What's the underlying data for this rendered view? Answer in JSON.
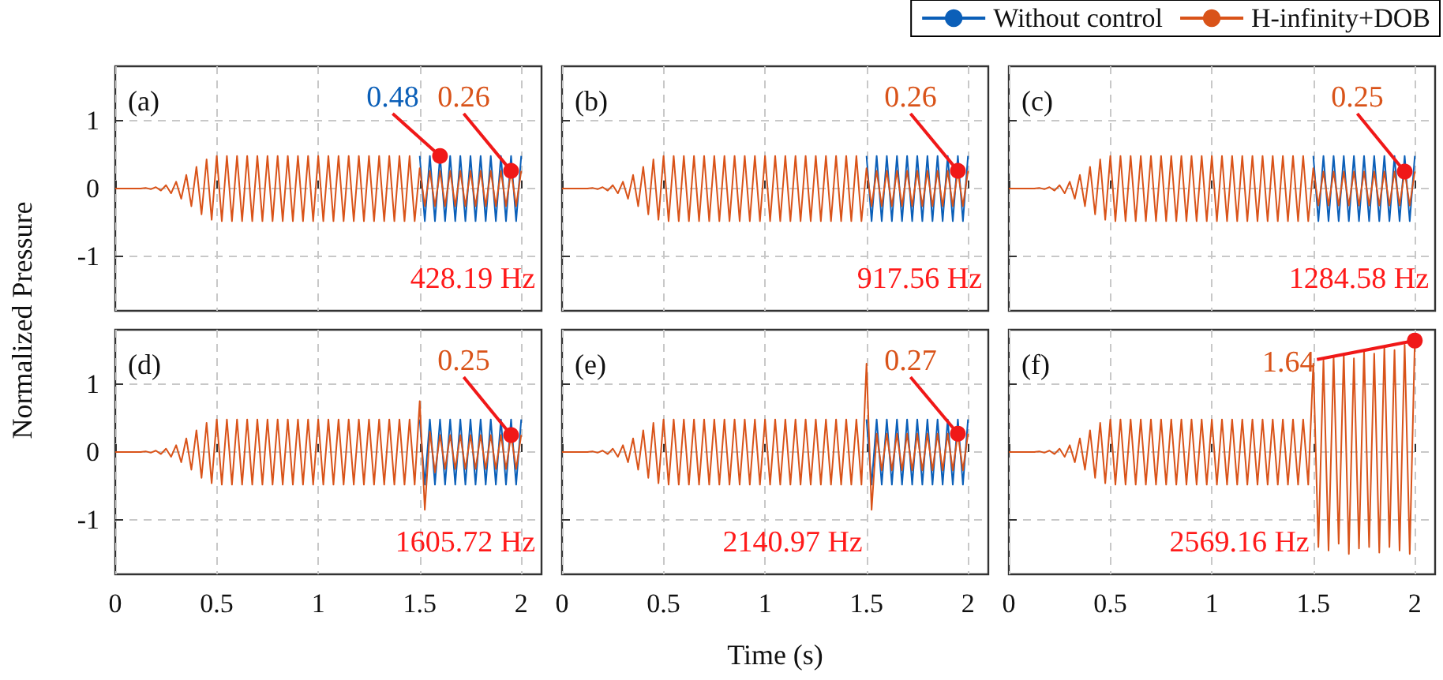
{
  "chart_data": [
    {
      "type": "line",
      "legend": "top right",
      "ylabel": "Normalized Pressure",
      "grid": true,
      "tick_labels": "y",
      "xlim": [
        0,
        2.1
      ],
      "xticks": [
        0,
        0.5,
        1,
        1.5,
        2
      ],
      "ylim": [
        -1.8,
        1.8
      ],
      "yticks": [
        -1,
        0,
        1
      ],
      "annotations": [
        "(a)",
        "428.19 Hz",
        {
          "text": "0.48",
          "x": 1.6,
          "y": 0.48
        },
        {
          "text": "0.26",
          "x": 1.95,
          "y": 0.26
        }
      ],
      "x": [
        0,
        0.025,
        0.05,
        0.075,
        0.1,
        0.125,
        0.15,
        0.175,
        0.2,
        0.225,
        0.25,
        0.275,
        0.3,
        0.325,
        0.35,
        0.375,
        0.4,
        0.425,
        0.45,
        0.475,
        0.5,
        0.525,
        0.55,
        0.575,
        0.6,
        0.625,
        0.65,
        0.675,
        0.7,
        0.725,
        0.75,
        0.775,
        0.8,
        0.825,
        0.85,
        0.875,
        0.9,
        0.925,
        0.95,
        0.975,
        1,
        1.025,
        1.05,
        1.075,
        1.1,
        1.125,
        1.15,
        1.175,
        1.2,
        1.225,
        1.25,
        1.275,
        1.3,
        1.325,
        1.35,
        1.375,
        1.4,
        1.425,
        1.45,
        1.475,
        1.5,
        1.525,
        1.55,
        1.575,
        1.6,
        1.625,
        1.65,
        1.675,
        1.7,
        1.725,
        1.75,
        1.775,
        1.8,
        1.825,
        1.85,
        1.875,
        1.9,
        1.925,
        1.95,
        1.975,
        2
      ],
      "series": [
        {
          "name": "Without control",
          "color": "#0b5fb8",
          "x": [
            1.5,
            1.525,
            1.55,
            1.575,
            1.6,
            1.625,
            1.65,
            1.675,
            1.7,
            1.725,
            1.75,
            1.775,
            1.8,
            1.825,
            1.85,
            1.875,
            1.9,
            1.925,
            1.95,
            1.975,
            2
          ],
          "values": [
            0.48,
            -0.48,
            0.48,
            -0.48,
            0.48,
            -0.48,
            0.48,
            -0.48,
            0.48,
            -0.48,
            0.48,
            -0.48,
            0.48,
            -0.48,
            0.48,
            -0.48,
            0.48,
            -0.48,
            0.48,
            -0.48,
            0.48
          ]
        },
        {
          "name": "H-infinity+DOB",
          "color": "#d95319",
          "values": [
            0,
            0,
            0,
            0,
            0,
            0,
            0.01,
            -0.01,
            0.02,
            -0.03,
            0.05,
            -0.07,
            0.1,
            -0.15,
            0.2,
            -0.26,
            0.32,
            -0.38,
            0.43,
            -0.46,
            0.48,
            -0.48,
            0.48,
            -0.48,
            0.48,
            -0.48,
            0.48,
            -0.48,
            0.48,
            -0.48,
            0.48,
            -0.48,
            0.48,
            -0.48,
            0.48,
            -0.48,
            0.48,
            -0.48,
            0.48,
            -0.48,
            0.48,
            -0.48,
            0.48,
            -0.48,
            0.48,
            -0.48,
            0.48,
            -0.48,
            0.48,
            -0.48,
            0.48,
            -0.48,
            0.48,
            -0.48,
            0.48,
            -0.48,
            0.48,
            -0.48,
            0.48,
            -0.48,
            0.3,
            -0.26,
            0.26,
            -0.26,
            0.26,
            -0.26,
            0.26,
            -0.26,
            0.26,
            -0.26,
            0.26,
            -0.26,
            0.26,
            -0.26,
            0.26,
            -0.26,
            0.26,
            -0.26,
            0.26,
            -0.26,
            0.26
          ]
        }
      ]
    },
    {
      "type": "line",
      "grid": true,
      "tick_labels": false,
      "xlim": [
        0,
        2.1
      ],
      "xticks": [
        0,
        0.5,
        1,
        1.5,
        2
      ],
      "ylim": [
        -1.8,
        1.8
      ],
      "yticks": [
        -1,
        0,
        1
      ],
      "annotations": [
        "(b)",
        "917.56 Hz",
        {
          "text": "0.26",
          "x": 1.95,
          "y": 0.26
        }
      ],
      "x": [
        0,
        0.025,
        0.05,
        0.075,
        0.1,
        0.125,
        0.15,
        0.175,
        0.2,
        0.225,
        0.25,
        0.275,
        0.3,
        0.325,
        0.35,
        0.375,
        0.4,
        0.425,
        0.45,
        0.475,
        0.5,
        0.525,
        0.55,
        0.575,
        0.6,
        0.625,
        0.65,
        0.675,
        0.7,
        0.725,
        0.75,
        0.775,
        0.8,
        0.825,
        0.85,
        0.875,
        0.9,
        0.925,
        0.95,
        0.975,
        1,
        1.025,
        1.05,
        1.075,
        1.1,
        1.125,
        1.15,
        1.175,
        1.2,
        1.225,
        1.25,
        1.275,
        1.3,
        1.325,
        1.35,
        1.375,
        1.4,
        1.425,
        1.45,
        1.475,
        1.5,
        1.525,
        1.55,
        1.575,
        1.6,
        1.625,
        1.65,
        1.675,
        1.7,
        1.725,
        1.75,
        1.775,
        1.8,
        1.825,
        1.85,
        1.875,
        1.9,
        1.925,
        1.95,
        1.975,
        2
      ],
      "series": [
        {
          "name": "Without control",
          "color": "#0b5fb8",
          "x": [
            1.5,
            1.525,
            1.55,
            1.575,
            1.6,
            1.625,
            1.65,
            1.675,
            1.7,
            1.725,
            1.75,
            1.775,
            1.8,
            1.825,
            1.85,
            1.875,
            1.9,
            1.925,
            1.95,
            1.975,
            2
          ],
          "values": [
            0.48,
            -0.48,
            0.48,
            -0.48,
            0.48,
            -0.48,
            0.48,
            -0.48,
            0.48,
            -0.48,
            0.48,
            -0.48,
            0.48,
            -0.48,
            0.48,
            -0.48,
            0.48,
            -0.48,
            0.48,
            -0.48,
            0.48
          ]
        },
        {
          "name": "H-infinity+DOB",
          "color": "#d95319",
          "values": [
            0,
            0,
            0,
            0,
            0,
            0,
            0.01,
            -0.01,
            0.02,
            -0.03,
            0.05,
            -0.07,
            0.1,
            -0.15,
            0.2,
            -0.26,
            0.32,
            -0.38,
            0.43,
            -0.46,
            0.48,
            -0.48,
            0.48,
            -0.48,
            0.48,
            -0.48,
            0.48,
            -0.48,
            0.48,
            -0.48,
            0.48,
            -0.48,
            0.48,
            -0.48,
            0.48,
            -0.48,
            0.48,
            -0.48,
            0.48,
            -0.48,
            0.48,
            -0.48,
            0.48,
            -0.48,
            0.48,
            -0.48,
            0.48,
            -0.48,
            0.48,
            -0.48,
            0.48,
            -0.48,
            0.48,
            -0.48,
            0.48,
            -0.48,
            0.48,
            -0.48,
            0.48,
            -0.48,
            0.3,
            -0.26,
            0.26,
            -0.26,
            0.26,
            -0.26,
            0.26,
            -0.26,
            0.26,
            -0.26,
            0.26,
            -0.26,
            0.26,
            -0.26,
            0.26,
            -0.26,
            0.26,
            -0.26,
            0.26,
            -0.26,
            0.26
          ]
        }
      ]
    },
    {
      "type": "line",
      "grid": true,
      "tick_labels": false,
      "xlim": [
        0,
        2.1
      ],
      "xticks": [
        0,
        0.5,
        1,
        1.5,
        2
      ],
      "ylim": [
        -1.8,
        1.8
      ],
      "yticks": [
        -1,
        0,
        1
      ],
      "annotations": [
        "(c)",
        "1284.58 Hz",
        {
          "text": "0.25",
          "x": 1.95,
          "y": 0.25
        }
      ],
      "x": [
        0,
        0.025,
        0.05,
        0.075,
        0.1,
        0.125,
        0.15,
        0.175,
        0.2,
        0.225,
        0.25,
        0.275,
        0.3,
        0.325,
        0.35,
        0.375,
        0.4,
        0.425,
        0.45,
        0.475,
        0.5,
        0.525,
        0.55,
        0.575,
        0.6,
        0.625,
        0.65,
        0.675,
        0.7,
        0.725,
        0.75,
        0.775,
        0.8,
        0.825,
        0.85,
        0.875,
        0.9,
        0.925,
        0.95,
        0.975,
        1,
        1.025,
        1.05,
        1.075,
        1.1,
        1.125,
        1.15,
        1.175,
        1.2,
        1.225,
        1.25,
        1.275,
        1.3,
        1.325,
        1.35,
        1.375,
        1.4,
        1.425,
        1.45,
        1.475,
        1.5,
        1.525,
        1.55,
        1.575,
        1.6,
        1.625,
        1.65,
        1.675,
        1.7,
        1.725,
        1.75,
        1.775,
        1.8,
        1.825,
        1.85,
        1.875,
        1.9,
        1.925,
        1.95,
        1.975,
        2
      ],
      "series": [
        {
          "name": "Without control",
          "color": "#0b5fb8",
          "x": [
            1.5,
            1.525,
            1.55,
            1.575,
            1.6,
            1.625,
            1.65,
            1.675,
            1.7,
            1.725,
            1.75,
            1.775,
            1.8,
            1.825,
            1.85,
            1.875,
            1.9,
            1.925,
            1.95,
            1.975,
            2
          ],
          "values": [
            0.48,
            -0.48,
            0.48,
            -0.48,
            0.48,
            -0.48,
            0.48,
            -0.48,
            0.48,
            -0.48,
            0.48,
            -0.48,
            0.48,
            -0.48,
            0.48,
            -0.48,
            0.48,
            -0.48,
            0.48,
            -0.48,
            0.48
          ]
        },
        {
          "name": "H-infinity+DOB",
          "color": "#d95319",
          "values": [
            0,
            0,
            0,
            0,
            0,
            0,
            0.01,
            -0.01,
            0.02,
            -0.03,
            0.05,
            -0.07,
            0.1,
            -0.15,
            0.2,
            -0.26,
            0.32,
            -0.38,
            0.43,
            -0.46,
            0.48,
            -0.48,
            0.48,
            -0.48,
            0.48,
            -0.48,
            0.48,
            -0.48,
            0.48,
            -0.48,
            0.48,
            -0.48,
            0.48,
            -0.48,
            0.48,
            -0.48,
            0.48,
            -0.48,
            0.48,
            -0.48,
            0.48,
            -0.48,
            0.48,
            -0.48,
            0.48,
            -0.48,
            0.48,
            -0.48,
            0.48,
            -0.48,
            0.48,
            -0.48,
            0.48,
            -0.48,
            0.48,
            -0.48,
            0.48,
            -0.48,
            0.48,
            -0.48,
            0.3,
            -0.25,
            0.25,
            -0.25,
            0.25,
            -0.25,
            0.25,
            -0.25,
            0.25,
            -0.25,
            0.25,
            -0.25,
            0.25,
            -0.25,
            0.25,
            -0.25,
            0.25,
            -0.25,
            0.25,
            -0.25,
            0.25
          ]
        }
      ]
    },
    {
      "type": "line",
      "grid": true,
      "xlim": [
        0,
        2.1
      ],
      "xticks": [
        0,
        0.5,
        1,
        1.5,
        2
      ],
      "ylim": [
        -1.8,
        1.8
      ],
      "yticks": [
        -1,
        0,
        1
      ],
      "annotations": [
        "(d)",
        "1605.72 Hz",
        {
          "text": "0.25",
          "x": 1.95,
          "y": 0.25
        }
      ],
      "x": [
        0,
        0.025,
        0.05,
        0.075,
        0.1,
        0.125,
        0.15,
        0.175,
        0.2,
        0.225,
        0.25,
        0.275,
        0.3,
        0.325,
        0.35,
        0.375,
        0.4,
        0.425,
        0.45,
        0.475,
        0.5,
        0.525,
        0.55,
        0.575,
        0.6,
        0.625,
        0.65,
        0.675,
        0.7,
        0.725,
        0.75,
        0.775,
        0.8,
        0.825,
        0.85,
        0.875,
        0.9,
        0.925,
        0.95,
        0.975,
        1,
        1.025,
        1.05,
        1.075,
        1.1,
        1.125,
        1.15,
        1.175,
        1.2,
        1.225,
        1.25,
        1.275,
        1.3,
        1.325,
        1.35,
        1.375,
        1.4,
        1.425,
        1.45,
        1.475,
        1.5,
        1.525,
        1.55,
        1.575,
        1.6,
        1.625,
        1.65,
        1.675,
        1.7,
        1.725,
        1.75,
        1.775,
        1.8,
        1.825,
        1.85,
        1.875,
        1.9,
        1.925,
        1.95,
        1.975,
        2
      ],
      "series": [
        {
          "name": "Without control",
          "color": "#0b5fb8",
          "x": [
            1.5,
            1.525,
            1.55,
            1.575,
            1.6,
            1.625,
            1.65,
            1.675,
            1.7,
            1.725,
            1.75,
            1.775,
            1.8,
            1.825,
            1.85,
            1.875,
            1.9,
            1.925,
            1.95,
            1.975,
            2
          ],
          "values": [
            0.48,
            -0.48,
            0.48,
            -0.48,
            0.48,
            -0.48,
            0.48,
            -0.48,
            0.48,
            -0.48,
            0.48,
            -0.48,
            0.48,
            -0.48,
            0.48,
            -0.48,
            0.48,
            -0.48,
            0.48,
            -0.48,
            0.48
          ]
        },
        {
          "name": "H-infinity+DOB",
          "color": "#d95319",
          "values": [
            0,
            0,
            0,
            0,
            0,
            0,
            0.01,
            -0.01,
            0.02,
            -0.03,
            0.05,
            -0.07,
            0.1,
            -0.15,
            0.2,
            -0.26,
            0.32,
            -0.38,
            0.43,
            -0.46,
            0.48,
            -0.48,
            0.48,
            -0.48,
            0.48,
            -0.48,
            0.48,
            -0.48,
            0.48,
            -0.48,
            0.48,
            -0.48,
            0.48,
            -0.48,
            0.48,
            -0.48,
            0.48,
            -0.48,
            0.48,
            -0.48,
            0.48,
            -0.48,
            0.48,
            -0.48,
            0.48,
            -0.48,
            0.48,
            -0.48,
            0.48,
            -0.48,
            0.48,
            -0.48,
            0.48,
            -0.48,
            0.48,
            -0.48,
            0.48,
            -0.48,
            0.48,
            -0.48,
            0.75,
            -0.85,
            0.3,
            -0.3,
            0.25,
            -0.25,
            0.25,
            -0.25,
            0.25,
            -0.25,
            0.25,
            -0.25,
            0.25,
            -0.25,
            0.25,
            -0.25,
            0.25,
            -0.25,
            0.25,
            -0.25,
            0.25
          ]
        }
      ]
    },
    {
      "type": "line",
      "xlabel": "Time (s)",
      "grid": true,
      "tick_labels": "x",
      "xlim": [
        0,
        2.1
      ],
      "xticks": [
        0,
        0.5,
        1,
        1.5,
        2
      ],
      "ylim": [
        -1.8,
        1.8
      ],
      "yticks": [
        -1,
        0,
        1
      ],
      "annotations": [
        "(e)",
        "2140.97 Hz",
        {
          "text": "0.27",
          "x": 1.95,
          "y": 0.27
        }
      ],
      "x": [
        0,
        0.025,
        0.05,
        0.075,
        0.1,
        0.125,
        0.15,
        0.175,
        0.2,
        0.225,
        0.25,
        0.275,
        0.3,
        0.325,
        0.35,
        0.375,
        0.4,
        0.425,
        0.45,
        0.475,
        0.5,
        0.525,
        0.55,
        0.575,
        0.6,
        0.625,
        0.65,
        0.675,
        0.7,
        0.725,
        0.75,
        0.775,
        0.8,
        0.825,
        0.85,
        0.875,
        0.9,
        0.925,
        0.95,
        0.975,
        1,
        1.025,
        1.05,
        1.075,
        1.1,
        1.125,
        1.15,
        1.175,
        1.2,
        1.225,
        1.25,
        1.275,
        1.3,
        1.325,
        1.35,
        1.375,
        1.4,
        1.425,
        1.45,
        1.475,
        1.5,
        1.525,
        1.55,
        1.575,
        1.6,
        1.625,
        1.65,
        1.675,
        1.7,
        1.725,
        1.75,
        1.775,
        1.8,
        1.825,
        1.85,
        1.875,
        1.9,
        1.925,
        1.95,
        1.975,
        2
      ],
      "series": [
        {
          "name": "Without control",
          "color": "#0b5fb8",
          "x": [
            1.5,
            1.525,
            1.55,
            1.575,
            1.6,
            1.625,
            1.65,
            1.675,
            1.7,
            1.725,
            1.75,
            1.775,
            1.8,
            1.825,
            1.85,
            1.875,
            1.9,
            1.925,
            1.95,
            1.975,
            2
          ],
          "values": [
            0.48,
            -0.48,
            0.48,
            -0.48,
            0.48,
            -0.48,
            0.48,
            -0.48,
            0.48,
            -0.48,
            0.48,
            -0.48,
            0.48,
            -0.48,
            0.48,
            -0.48,
            0.48,
            -0.48,
            0.48,
            -0.48,
            0.48
          ]
        },
        {
          "name": "H-infinity+DOB",
          "color": "#d95319",
          "values": [
            0,
            0,
            0,
            0,
            0,
            0,
            0.01,
            -0.01,
            0.02,
            -0.03,
            0.05,
            -0.07,
            0.1,
            -0.15,
            0.2,
            -0.26,
            0.32,
            -0.38,
            0.43,
            -0.46,
            0.48,
            -0.48,
            0.48,
            -0.48,
            0.48,
            -0.48,
            0.48,
            -0.48,
            0.48,
            -0.48,
            0.48,
            -0.48,
            0.48,
            -0.48,
            0.48,
            -0.48,
            0.48,
            -0.48,
            0.48,
            -0.48,
            0.48,
            -0.48,
            0.48,
            -0.48,
            0.48,
            -0.48,
            0.48,
            -0.48,
            0.48,
            -0.48,
            0.48,
            -0.48,
            0.48,
            -0.48,
            0.48,
            -0.48,
            0.48,
            -0.48,
            0.48,
            -0.48,
            1.3,
            -0.85,
            0.27,
            -0.27,
            0.27,
            -0.27,
            0.27,
            -0.27,
            0.27,
            -0.27,
            0.27,
            -0.27,
            0.27,
            -0.27,
            0.27,
            -0.27,
            0.27,
            -0.27,
            0.27,
            -0.27,
            0.27
          ]
        }
      ]
    },
    {
      "type": "line",
      "grid": true,
      "tick_labels": "x",
      "xlim": [
        0,
        2.1
      ],
      "xticks": [
        0,
        0.5,
        1,
        1.5,
        2
      ],
      "ylim": [
        -1.8,
        1.8
      ],
      "yticks": [
        -1,
        0,
        1
      ],
      "annotations": [
        "(f)",
        "2569.16 Hz",
        {
          "text": "1.64",
          "x": 2,
          "y": 1.64
        }
      ],
      "x": [
        0,
        0.025,
        0.05,
        0.075,
        0.1,
        0.125,
        0.15,
        0.175,
        0.2,
        0.225,
        0.25,
        0.275,
        0.3,
        0.325,
        0.35,
        0.375,
        0.4,
        0.425,
        0.45,
        0.475,
        0.5,
        0.525,
        0.55,
        0.575,
        0.6,
        0.625,
        0.65,
        0.675,
        0.7,
        0.725,
        0.75,
        0.775,
        0.8,
        0.825,
        0.85,
        0.875,
        0.9,
        0.925,
        0.95,
        0.975,
        1,
        1.025,
        1.05,
        1.075,
        1.1,
        1.125,
        1.15,
        1.175,
        1.2,
        1.225,
        1.25,
        1.275,
        1.3,
        1.325,
        1.35,
        1.375,
        1.4,
        1.425,
        1.45,
        1.475,
        1.5,
        1.525,
        1.55,
        1.575,
        1.6,
        1.625,
        1.65,
        1.675,
        1.7,
        1.725,
        1.75,
        1.775,
        1.8,
        1.825,
        1.85,
        1.875,
        1.9,
        1.925,
        1.95,
        1.975,
        2
      ],
      "series": [
        {
          "name": "H-infinity+DOB",
          "color": "#d95319",
          "values": [
            0,
            0,
            0,
            0,
            0,
            0,
            0.01,
            -0.01,
            0.02,
            -0.03,
            0.05,
            -0.07,
            0.1,
            -0.15,
            0.2,
            -0.26,
            0.32,
            -0.38,
            0.43,
            -0.46,
            0.48,
            -0.48,
            0.48,
            -0.48,
            0.48,
            -0.48,
            0.48,
            -0.48,
            0.48,
            -0.48,
            0.48,
            -0.48,
            0.48,
            -0.48,
            0.48,
            -0.48,
            0.48,
            -0.48,
            0.48,
            -0.48,
            0.48,
            -0.48,
            0.48,
            -0.48,
            0.48,
            -0.48,
            0.48,
            -0.48,
            0.48,
            -0.48,
            0.48,
            -0.48,
            0.48,
            -0.48,
            0.48,
            -0.48,
            0.48,
            -0.48,
            0.48,
            -0.48,
            1.3,
            -1.4,
            1.35,
            -1.45,
            1.4,
            -1.35,
            1.45,
            -1.5,
            1.38,
            -1.42,
            1.5,
            -1.4,
            1.45,
            -1.48,
            1.55,
            -1.4,
            1.5,
            -1.45,
            1.58,
            -1.5,
            1.64
          ]
        }
      ]
    }
  ]
}
